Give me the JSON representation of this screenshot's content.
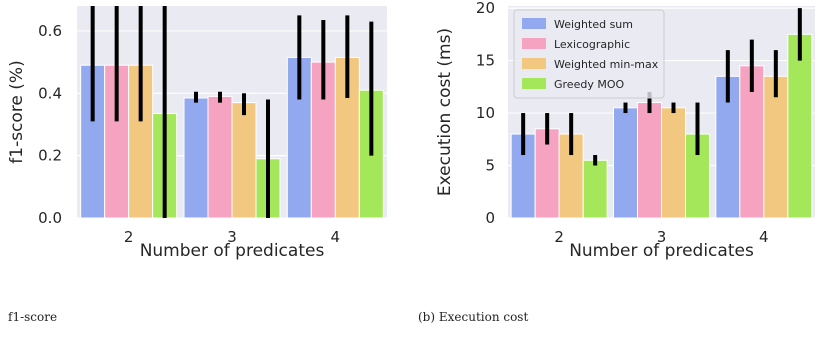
{
  "colors": {
    "Weighted sum": "#92a9f0",
    "Lexicographic": "#f5a3c1",
    "Weighted min-max": "#f2c77f",
    "Greedy MOO": "#a5e75a",
    "plot_bg": "#eaeaf2",
    "grid": "#ffffff",
    "error_bar": "#000000"
  },
  "chart_data": [
    {
      "type": "bar",
      "title": "",
      "xlabel": "Number of predicates",
      "ylabel": "f1-score (%)",
      "categories": [
        "2",
        "3",
        "4"
      ],
      "ylim": [
        0,
        0.68
      ],
      "yticks": [
        0.0,
        0.2,
        0.4,
        0.6
      ],
      "ytick_labels": [
        "0.0",
        "0.2",
        "0.4",
        "0.6"
      ],
      "grid": true,
      "legend": "none",
      "series": [
        {
          "name": "Weighted sum",
          "values": [
            0.49,
            0.385,
            0.515
          ],
          "err_low": [
            0.31,
            0.37,
            0.38
          ],
          "err_high": [
            0.68,
            0.405,
            0.65
          ]
        },
        {
          "name": "Lexicographic",
          "values": [
            0.49,
            0.39,
            0.5
          ],
          "err_low": [
            0.31,
            0.37,
            0.38
          ],
          "err_high": [
            0.68,
            0.405,
            0.635
          ]
        },
        {
          "name": "Weighted min-max",
          "values": [
            0.49,
            0.37,
            0.515
          ],
          "err_low": [
            0.31,
            0.33,
            0.385
          ],
          "err_high": [
            0.68,
            0.4,
            0.65
          ]
        },
        {
          "name": "Greedy MOO",
          "values": [
            0.335,
            0.19,
            0.41
          ],
          "err_low": [
            0.0,
            0.0,
            0.2
          ],
          "err_high": [
            0.68,
            0.38,
            0.63
          ]
        }
      ]
    },
    {
      "type": "bar",
      "title": "",
      "xlabel": "Number of predicates",
      "ylabel": "Execution cost (ms)",
      "categories": [
        "2",
        "3",
        "4"
      ],
      "ylim": [
        0,
        20.2
      ],
      "yticks": [
        0,
        5,
        10,
        15,
        20
      ],
      "ytick_labels": [
        "0",
        "5",
        "10",
        "15",
        "20"
      ],
      "grid": true,
      "legend": "top-left",
      "series": [
        {
          "name": "Weighted sum",
          "values": [
            8.0,
            10.5,
            13.5
          ],
          "err_low": [
            6.0,
            10.0,
            11.0
          ],
          "err_high": [
            10.0,
            11.0,
            16.0
          ]
        },
        {
          "name": "Lexicographic",
          "values": [
            8.5,
            11.0,
            14.5
          ],
          "err_low": [
            7.0,
            10.0,
            12.0
          ],
          "err_high": [
            10.0,
            12.0,
            17.0
          ]
        },
        {
          "name": "Weighted min-max",
          "values": [
            8.0,
            10.5,
            13.5
          ],
          "err_low": [
            6.0,
            10.0,
            11.5
          ],
          "err_high": [
            10.0,
            11.0,
            16.0
          ]
        },
        {
          "name": "Greedy MOO",
          "values": [
            5.5,
            8.0,
            17.5
          ],
          "err_low": [
            5.0,
            6.0,
            15.0
          ],
          "err_high": [
            6.0,
            11.0,
            20.0
          ]
        }
      ]
    }
  ],
  "captions": {
    "left": "f1-score",
    "right": "(b) Execution cost"
  }
}
